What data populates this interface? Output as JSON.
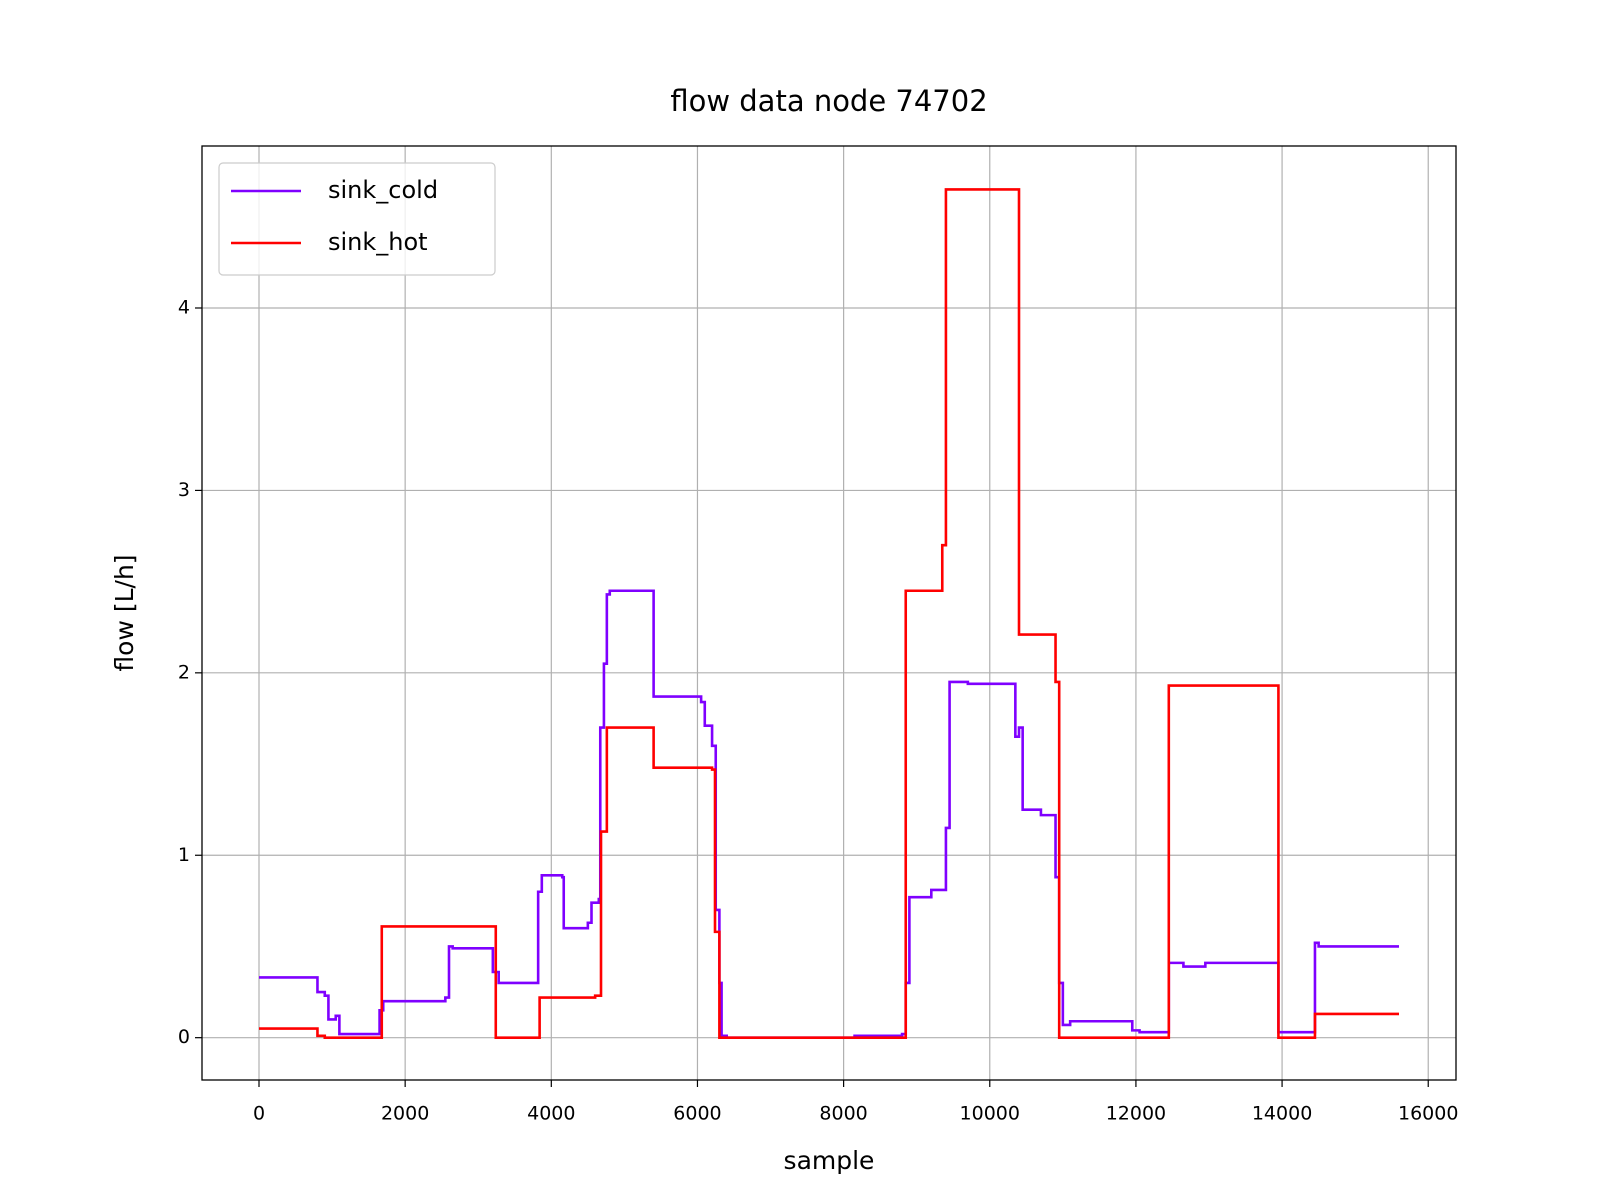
{
  "chart_data": {
    "type": "line",
    "drawstyle": "steps-post",
    "title": "flow data node 74702",
    "xlabel": "sample",
    "ylabel": "flow [L/h]",
    "xlim": [
      -780,
      16380
    ],
    "ylim": [
      -0.232,
      4.888
    ],
    "xticks": [
      0,
      2000,
      4000,
      6000,
      8000,
      10000,
      12000,
      14000,
      16000
    ],
    "yticks": [
      0,
      1,
      2,
      3,
      4
    ],
    "grid": true,
    "legend_loc": "upper left",
    "series": [
      {
        "name": "sink_cold",
        "color": "#7f00ff",
        "x": [
          0,
          800,
          900,
          950,
          1050,
          1100,
          1650,
          1700,
          2550,
          2600,
          2650,
          3200,
          3280,
          3820,
          3870,
          4150,
          4170,
          4500,
          4550,
          4650,
          4670,
          4720,
          4760,
          4800,
          5400,
          6050,
          6100,
          6200,
          6250,
          6300,
          6330,
          6400,
          8150,
          8800,
          8850,
          8900,
          9200,
          9400,
          9450,
          9700,
          10350,
          10400,
          10450,
          10700,
          10900,
          10950,
          11000,
          11100,
          11950,
          12050,
          12450,
          12650,
          12950,
          13950,
          14450,
          14500,
          15600
        ],
        "values": [
          0.33,
          0.25,
          0.23,
          0.1,
          0.12,
          0.02,
          0.15,
          0.2,
          0.22,
          0.5,
          0.49,
          0.36,
          0.3,
          0.8,
          0.89,
          0.88,
          0.6,
          0.63,
          0.74,
          0.76,
          1.7,
          2.05,
          2.43,
          2.45,
          1.87,
          1.84,
          1.71,
          1.6,
          0.7,
          0.3,
          0.01,
          0.0,
          0.01,
          0.02,
          0.3,
          0.77,
          0.81,
          1.15,
          1.95,
          1.94,
          1.65,
          1.7,
          1.25,
          1.22,
          0.88,
          0.3,
          0.07,
          0.09,
          0.04,
          0.03,
          0.41,
          0.39,
          0.41,
          0.03,
          0.52,
          0.5,
          0.5
        ]
      },
      {
        "name": "sink_hot",
        "color": "#ff0000",
        "x": [
          0,
          800,
          900,
          1680,
          3240,
          3840,
          4600,
          4680,
          4760,
          5400,
          6200,
          6240,
          6300,
          8850,
          9350,
          9400,
          10400,
          10900,
          10950,
          12450,
          13950,
          14450,
          15600
        ],
        "values": [
          0.05,
          0.01,
          0.0,
          0.61,
          0.0,
          0.22,
          0.23,
          1.13,
          1.7,
          1.48,
          1.47,
          0.58,
          0.0,
          2.45,
          2.7,
          4.65,
          2.21,
          1.95,
          0.0,
          1.93,
          0.0,
          0.13,
          0.13
        ]
      }
    ]
  }
}
